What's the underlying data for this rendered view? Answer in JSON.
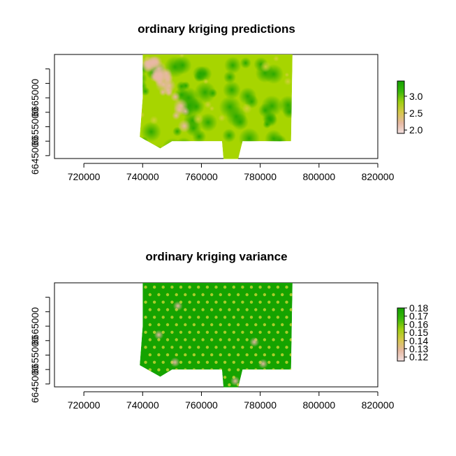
{
  "chart_data": [
    {
      "type": "heatmap",
      "title": "ordinary kriging predictions",
      "xlabel": "",
      "ylabel": "",
      "xlim": [
        710000,
        820000
      ],
      "ylim": [
        6644000,
        6680000
      ],
      "x_ticks": [
        720000,
        740000,
        760000,
        780000,
        800000,
        820000
      ],
      "x_tick_labels": [
        "720000",
        "740000",
        "760000",
        "780000",
        "800000",
        "820000"
      ],
      "y_ticks": [
        6645000,
        6650000,
        6655000,
        6660000,
        6665000,
        6670000,
        6675000
      ],
      "y_tick_labels": [
        "6645000",
        "",
        "6655000",
        "",
        "6665000",
        "",
        ""
      ],
      "grid": false,
      "legend_placement": "right",
      "colorbar": {
        "range": [
          1.9,
          3.45
        ],
        "ticks": [
          2.0,
          2.5,
          3.0
        ],
        "tick_labels": [
          "2.0",
          "2.5",
          "3.0"
        ],
        "colors": [
          "#f2e0e0",
          "#e6b8a0",
          "#d6c84a",
          "#9ecf10",
          "#3ab80a",
          "#14a100"
        ]
      },
      "region_color_mean": "#a7d500"
    },
    {
      "type": "heatmap",
      "title": "ordinary kriging variance",
      "xlabel": "",
      "ylabel": "",
      "xlim": [
        710000,
        820000
      ],
      "ylim": [
        6644000,
        6680000
      ],
      "x_ticks": [
        720000,
        740000,
        760000,
        780000,
        800000,
        820000
      ],
      "x_tick_labels": [
        "720000",
        "740000",
        "760000",
        "780000",
        "800000",
        "820000"
      ],
      "y_ticks": [
        6645000,
        6650000,
        6655000,
        6660000,
        6665000,
        6670000,
        6675000
      ],
      "y_tick_labels": [
        "6645000",
        "",
        "6655000",
        "",
        "6665000",
        "",
        ""
      ],
      "grid": false,
      "legend_placement": "right",
      "colorbar": {
        "range": [
          0.115,
          0.18
        ],
        "ticks": [
          0.12,
          0.13,
          0.14,
          0.15,
          0.16,
          0.17,
          0.18
        ],
        "tick_labels": [
          "0.12",
          "0.13",
          "0.14",
          "0.15",
          "0.16",
          "0.17",
          "0.18"
        ],
        "colors": [
          "#f2e0e0",
          "#e6b8a0",
          "#d6c84a",
          "#9ecf10",
          "#3ab80a",
          "#14a100"
        ]
      },
      "region_color_mean": "#15a300"
    }
  ]
}
